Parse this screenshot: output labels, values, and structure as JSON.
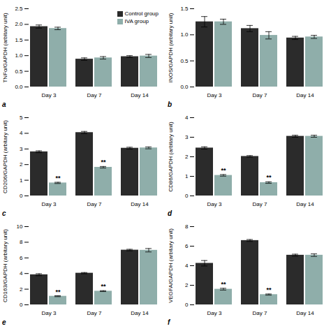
{
  "chart_data": [
    {
      "type": "bar",
      "title": "a",
      "ylabel": "TNFα/GAPDH (arbitary unit)",
      "ylim": [
        0,
        2.5
      ],
      "yticks": [
        {
          "value": 0,
          "label": "0.0"
        },
        {
          "value": 0.5,
          "label": "0.5"
        },
        {
          "value": 1.0,
          "label": "1.0"
        },
        {
          "value": 1.5,
          "label": "1.5"
        },
        {
          "value": 2.0,
          "label": "2.0"
        },
        {
          "value": 2.5,
          "label": "2.5"
        }
      ],
      "categories": [
        "Day 3",
        "Day 7",
        "Day 14"
      ],
      "series": [
        {
          "name": "Control group",
          "color": "#2b2b2b",
          "values": [
            1.93,
            0.89,
            0.97
          ],
          "errors": [
            0.05,
            0.04,
            0.03
          ]
        },
        {
          "name": "IVA group",
          "color": "#8faeaa",
          "values": [
            1.87,
            0.93,
            0.99
          ],
          "errors": [
            0.04,
            0.04,
            0.05
          ]
        }
      ],
      "annotations": [],
      "legend": "upper right"
    },
    {
      "type": "bar",
      "title": "b",
      "ylabel": "INOS/GAPDH (arbitary unit)",
      "ylim": [
        0,
        1.5
      ],
      "yticks": [
        {
          "value": 0,
          "label": "0.0"
        },
        {
          "value": 0.5,
          "label": "0.5"
        },
        {
          "value": 1.0,
          "label": "1.0"
        },
        {
          "value": 1.5,
          "label": "1.5"
        }
      ],
      "categories": [
        "Day 3",
        "Day 7",
        "Day 14"
      ],
      "series": [
        {
          "name": "Control group",
          "color": "#2b2b2b",
          "values": [
            1.25,
            1.12,
            0.94
          ],
          "errors": [
            0.1,
            0.06,
            0.03
          ]
        },
        {
          "name": "IVA group",
          "color": "#8faeaa",
          "values": [
            1.25,
            0.99,
            0.96
          ],
          "errors": [
            0.05,
            0.07,
            0.03
          ]
        }
      ],
      "annotations": []
    },
    {
      "type": "bar",
      "title": "c",
      "ylabel": "CD206/GAPDH (arbitary unit)",
      "ylim": [
        0,
        5
      ],
      "yticks": [
        0,
        1,
        2,
        3,
        4,
        5
      ],
      "categories": [
        "Day 3",
        "Day 7",
        "Day 14"
      ],
      "series": [
        {
          "name": "Control group",
          "color": "#2b2b2b",
          "values": [
            2.82,
            4.05,
            3.05
          ],
          "errors": [
            0.06,
            0.07,
            0.06
          ]
        },
        {
          "name": "IVA group",
          "color": "#8faeaa",
          "values": [
            0.83,
            1.83,
            3.07
          ],
          "errors": [
            0.04,
            0.05,
            0.06
          ]
        }
      ],
      "annotations": [
        {
          "text": "**",
          "category": "Day 3",
          "series": "IVA group"
        },
        {
          "text": "**",
          "category": "Day 7",
          "series": "IVA group"
        }
      ]
    },
    {
      "type": "bar",
      "title": "d",
      "ylabel": "CD86/GAPDH (arbitary unit)",
      "ylim": [
        0,
        4
      ],
      "yticks": [
        0,
        1,
        2,
        3,
        4
      ],
      "categories": [
        "Day 3",
        "Day 7",
        "Day 14"
      ],
      "series": [
        {
          "name": "Control group",
          "color": "#2b2b2b",
          "values": [
            2.45,
            2.02,
            3.05
          ],
          "errors": [
            0.06,
            0.04,
            0.05
          ]
        },
        {
          "name": "IVA group",
          "color": "#8faeaa",
          "values": [
            1.05,
            0.68,
            3.05
          ],
          "errors": [
            0.04,
            0.04,
            0.05
          ]
        }
      ],
      "annotations": [
        {
          "text": "**",
          "category": "Day 3",
          "series": "IVA group"
        },
        {
          "text": "**",
          "category": "Day 7",
          "series": "IVA group"
        }
      ]
    },
    {
      "type": "bar",
      "title": "e",
      "ylabel": "CD163/GAPDH (arbitary unit)",
      "ylim": [
        0,
        10
      ],
      "yticks": [
        0,
        2,
        4,
        6,
        8,
        10
      ],
      "categories": [
        "Day 3",
        "Day 7",
        "Day 14"
      ],
      "series": [
        {
          "name": "Control group",
          "color": "#2b2b2b",
          "values": [
            3.85,
            4.05,
            7.0
          ],
          "errors": [
            0.13,
            0.08,
            0.1
          ]
        },
        {
          "name": "IVA group",
          "color": "#8faeaa",
          "values": [
            1.1,
            1.75,
            6.98
          ],
          "errors": [
            0.06,
            0.06,
            0.22
          ]
        }
      ],
      "annotations": [
        {
          "text": "**",
          "category": "Day 3",
          "series": "IVA group"
        },
        {
          "text": "**",
          "category": "Day 7",
          "series": "IVA group"
        }
      ]
    },
    {
      "type": "bar",
      "title": "f",
      "ylabel": "VEGFA/GAPDH (arbitary unit)",
      "ylim": [
        0,
        8
      ],
      "yticks": [
        0,
        2,
        4,
        6,
        8
      ],
      "categories": [
        "Day 3",
        "Day 7",
        "Day 14"
      ],
      "series": [
        {
          "name": "Control group",
          "color": "#2b2b2b",
          "values": [
            4.25,
            6.58,
            5.08
          ],
          "errors": [
            0.28,
            0.1,
            0.1
          ]
        },
        {
          "name": "IVA group",
          "color": "#8faeaa",
          "values": [
            1.6,
            1.05,
            5.08
          ],
          "errors": [
            0.09,
            0.06,
            0.13
          ]
        }
      ],
      "annotations": [
        {
          "text": "**",
          "category": "Day 3",
          "series": "IVA group"
        },
        {
          "text": "**",
          "category": "Day 7",
          "series": "IVA group"
        }
      ]
    }
  ]
}
